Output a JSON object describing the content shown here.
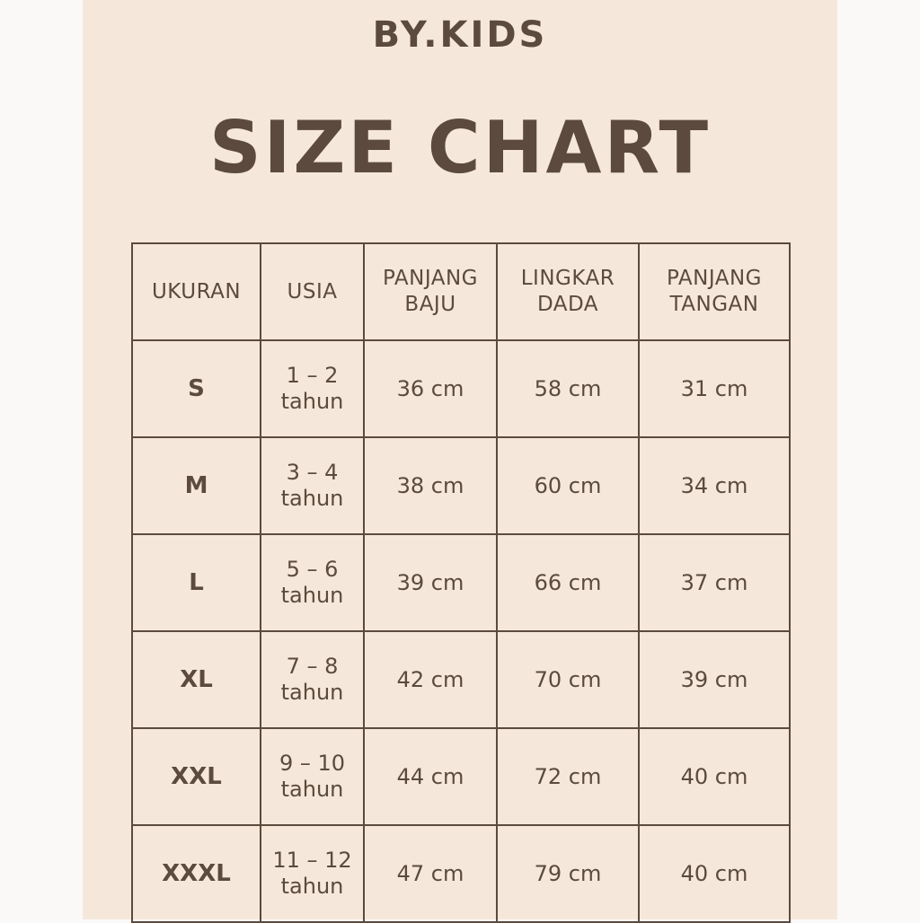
{
  "brand": "BY.KIDS",
  "title": "SIZE CHART",
  "colors": {
    "background": "#f5e8db",
    "text": "#5b4a3d",
    "border": "#5b4a3d"
  },
  "table": {
    "headers": [
      [
        "UKURAN"
      ],
      [
        "USIA"
      ],
      [
        "PANJANG",
        "BAJU"
      ],
      [
        "LINGKAR",
        "DADA"
      ],
      [
        "PANJANG",
        "TANGAN"
      ]
    ],
    "rows": [
      {
        "size": "S",
        "age": "1 – 2",
        "age_unit": "tahun",
        "body_length": "36 cm",
        "chest": "58 cm",
        "sleeve": "31 cm"
      },
      {
        "size": "M",
        "age": "3 – 4",
        "age_unit": "tahun",
        "body_length": "38 cm",
        "chest": "60 cm",
        "sleeve": "34 cm"
      },
      {
        "size": "L",
        "age": "5 – 6",
        "age_unit": "tahun",
        "body_length": "39 cm",
        "chest": "66 cm",
        "sleeve": "37 cm"
      },
      {
        "size": "XL",
        "age": "7 – 8",
        "age_unit": "tahun",
        "body_length": "42 cm",
        "chest": "70 cm",
        "sleeve": "39 cm"
      },
      {
        "size": "XXL",
        "age": "9 – 10",
        "age_unit": "tahun",
        "body_length": "44 cm",
        "chest": "72 cm",
        "sleeve": "40 cm"
      },
      {
        "size": "XXXL",
        "age": "11 – 12",
        "age_unit": "tahun",
        "body_length": "47 cm",
        "chest": "79 cm",
        "sleeve": "40 cm"
      }
    ]
  }
}
